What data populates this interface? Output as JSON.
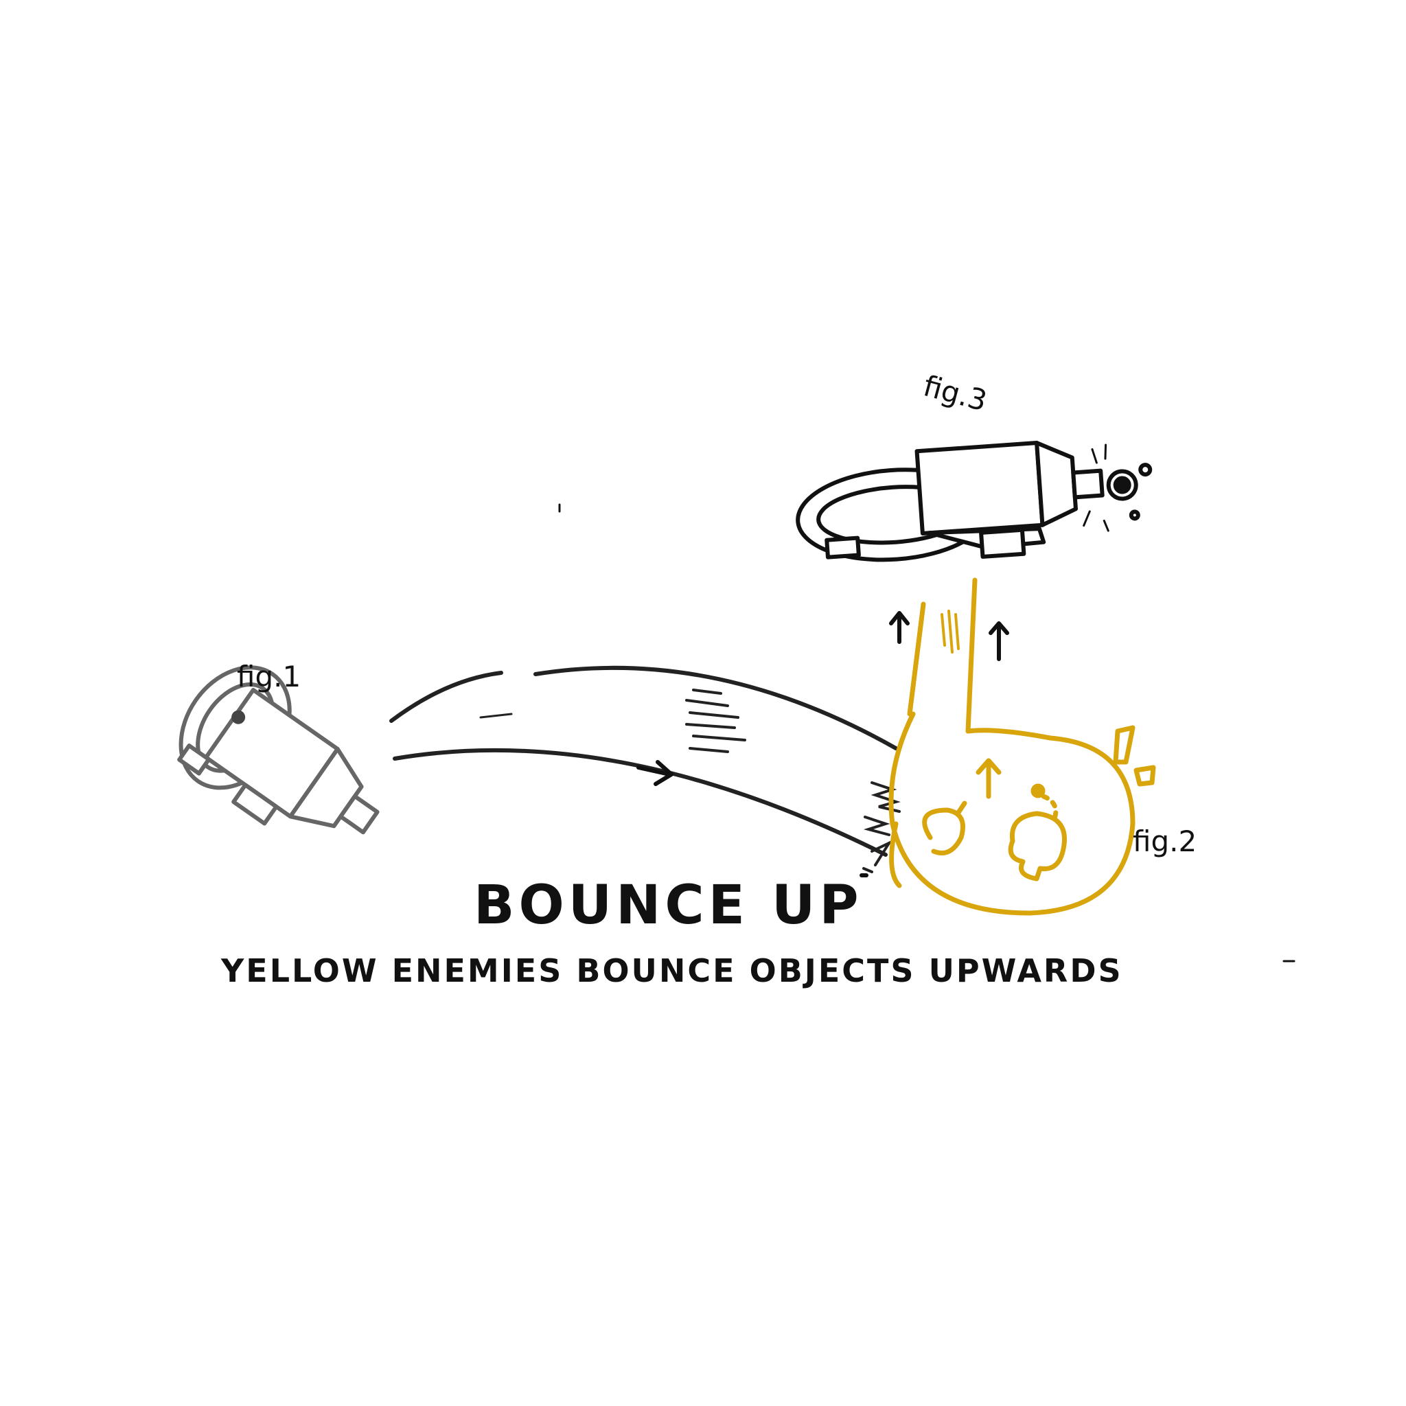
{
  "title": "BOUNCE UP",
  "subtitle": "YELLOW ENEMIES BOUNCE OBJECTS UPWARDS",
  "figures": [
    {
      "label": "fig.1"
    },
    {
      "label": "fig.2"
    },
    {
      "label": "fig.3"
    }
  ],
  "colors": {
    "ink": "#111111",
    "faded_ink": "#666666",
    "enemy_yellow": "#D8A50C"
  },
  "icons": [
    "spaceship-icon",
    "yellow-enemy-icon",
    "motion-arrow-icon",
    "up-arrow-icon",
    "exclamation-icon"
  ]
}
